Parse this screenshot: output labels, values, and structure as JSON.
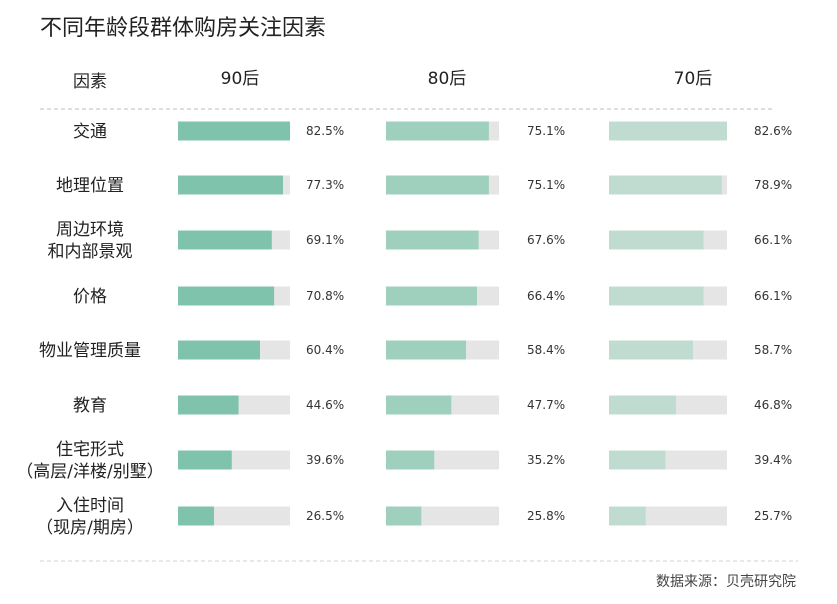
{
  "chart_data": {
    "type": "bar",
    "title": "不同年龄段群体购房关注因素",
    "column_header": "因素",
    "series": [
      {
        "name": "90后",
        "color": "#7fc3ac",
        "values": [
          82.5,
          77.3,
          69.1,
          70.8,
          60.4,
          44.6,
          39.6,
          26.5
        ]
      },
      {
        "name": "80后",
        "color": "#9fcfbd",
        "values": [
          75.1,
          75.1,
          67.6,
          66.4,
          58.4,
          47.7,
          35.2,
          25.8
        ]
      },
      {
        "name": "70后",
        "color": "#c0dcd1",
        "values": [
          82.6,
          78.9,
          66.1,
          66.1,
          58.7,
          46.8,
          39.4,
          25.7
        ]
      }
    ],
    "categories": [
      [
        "交通"
      ],
      [
        "地理位置"
      ],
      [
        "周边环境",
        "和内部景观"
      ],
      [
        "价格"
      ],
      [
        "物业管理质量"
      ],
      [
        "教育"
      ],
      [
        "住宅形式",
        "（高层/洋楼/别墅）"
      ],
      [
        "入住时间",
        "（现房/期房）"
      ]
    ],
    "value_labels": [
      [
        "82.5%",
        "77.3%",
        "69.1%",
        "70.8%",
        "60.4%",
        "44.6%",
        "39.6%",
        "26.5%"
      ],
      [
        "75.1%",
        "75.1%",
        "67.6%",
        "66.4%",
        "58.4%",
        "47.7%",
        "35.2%",
        "25.8%"
      ],
      [
        "82.6%",
        "78.9%",
        "66.1%",
        "66.1%",
        "58.7%",
        "46.8%",
        "39.4%",
        "25.7%"
      ]
    ],
    "track_color": "#e5e5e5",
    "source": "数据来源：贝壳研究院"
  }
}
